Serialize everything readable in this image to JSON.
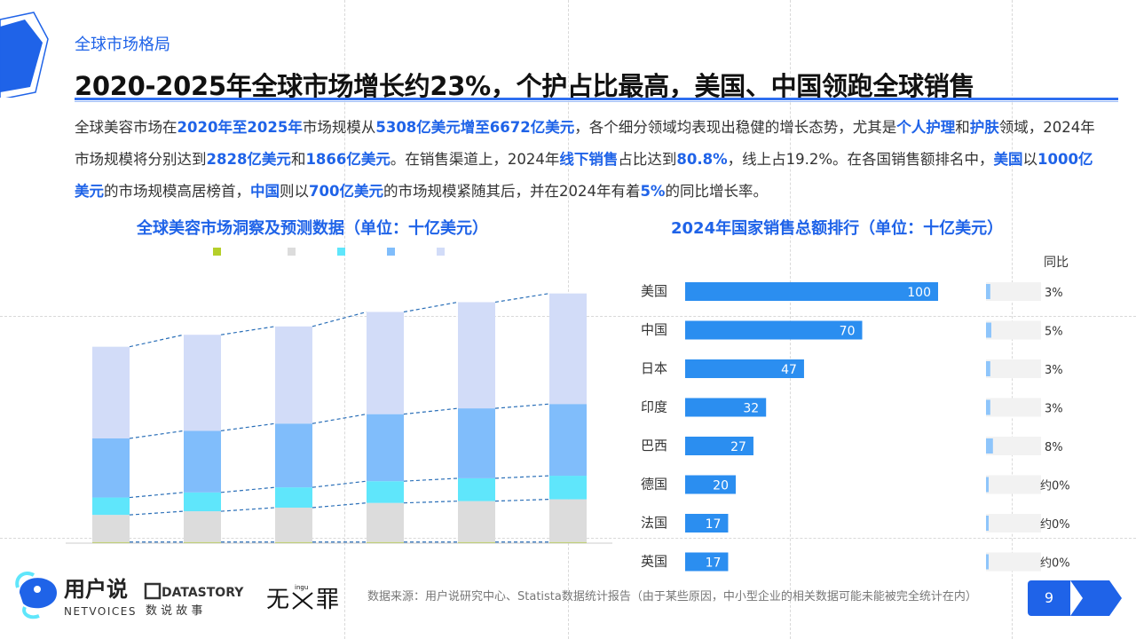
{
  "header": {
    "section_label": "全球市场格局",
    "headline": "2020-2025年全球市场增长约23%，个护占比最高，美国、中国领跑全球销售"
  },
  "summary": [
    {
      "t": "全球美容市场在"
    },
    {
      "t": "2020年至2025年",
      "b": true
    },
    {
      "t": "市场规模从"
    },
    {
      "t": "5308亿美元增至6672亿美元",
      "b": true
    },
    {
      "t": "，各个细分领域均表现出稳健的增长态势，尤其是"
    },
    {
      "t": "个人护理",
      "b": true
    },
    {
      "t": "和"
    },
    {
      "t": "护肤",
      "b": true
    },
    {
      "t": "领域，2024年市场规模将分别达到"
    },
    {
      "t": "2828亿美元",
      "b": true
    },
    {
      "t": "和"
    },
    {
      "t": "1866亿美元",
      "b": true
    },
    {
      "t": "。在销售渠道上，2024年"
    },
    {
      "t": "线下销售",
      "b": true
    },
    {
      "t": "占比达到"
    },
    {
      "t": "80.8%",
      "b": true
    },
    {
      "t": "，线上占19.2%。在各国销售额排名中，"
    },
    {
      "t": "美国",
      "b": true
    },
    {
      "t": "以"
    },
    {
      "t": "1000亿美元",
      "b": true
    },
    {
      "t": "的市场规模高居榜首，"
    },
    {
      "t": "中国",
      "b": true
    },
    {
      "t": "则以"
    },
    {
      "t": "700亿美元",
      "b": true
    },
    {
      "t": "的市场规模紧随其后，并在2024年有着"
    },
    {
      "t": "5%",
      "b": true
    },
    {
      "t": "的同比增长率。"
    }
  ],
  "chart_data": [
    {
      "type": "bar",
      "stacked": true,
      "title": "全球美容市场洞察及预测数据（单位：十亿美元）",
      "legend_position": "top",
      "categories": [
        "",
        "",
        "",
        "",
        "",
        ""
      ],
      "series": [
        {
          "color": "#b5cf2a",
          "values": [
            3,
            3,
            3,
            3,
            3,
            3
          ]
        },
        {
          "color": "#dcdcdc",
          "values": [
            75,
            85,
            95,
            108,
            113,
            118
          ]
        },
        {
          "color": "#5fe6fb",
          "values": [
            48,
            52,
            56,
            60,
            63,
            65
          ]
        },
        {
          "color": "#80bdfb",
          "values": [
            163,
            170,
            176,
            185,
            193,
            198
          ]
        },
        {
          "color": "#d2dcf8",
          "values": [
            253,
            265,
            268,
            282,
            293,
            305
          ]
        }
      ],
      "ylim": [
        0,
        720
      ],
      "connector_lines": true
    },
    {
      "type": "bar",
      "orientation": "horizontal",
      "title": "2024年国家销售总额排行（单位：十亿美元）",
      "yoy_header": "同比",
      "categories": [
        "美国",
        "中国",
        "日本",
        "印度",
        "巴西",
        "德国",
        "法国",
        "英国"
      ],
      "values": [
        100,
        70,
        47,
        32,
        27,
        20,
        17,
        17
      ],
      "value_labels": [
        "100",
        "70",
        "47",
        "32",
        "27",
        "20",
        "17",
        "17"
      ],
      "yoy_labels": [
        "3%",
        "5%",
        "3%",
        "3%",
        "8%",
        "约0%",
        "约0%",
        "约0%"
      ],
      "yoy_values": [
        3,
        5,
        3,
        3,
        8,
        0,
        0,
        0
      ],
      "xlim": [
        0,
        100
      ],
      "bar_color": "#2b8ef0"
    }
  ],
  "footer": {
    "brand_cn": "用户说",
    "brand_en": "NETVOICES",
    "datastory_en": "DATASTORY",
    "datastory_cn": "数 说 故 事",
    "partner_mark": "无",
    "partner_small": "ingu",
    "partner_cn": "罪",
    "source": "数据来源：用户说研究中心、Statista数据统计报告（由于某些原因，中小型企业的相关数据可能未能被完全统计在内）",
    "page_number": "9"
  },
  "colors": {
    "accent": "#1f63e8",
    "bar": "#2b8ef0"
  }
}
